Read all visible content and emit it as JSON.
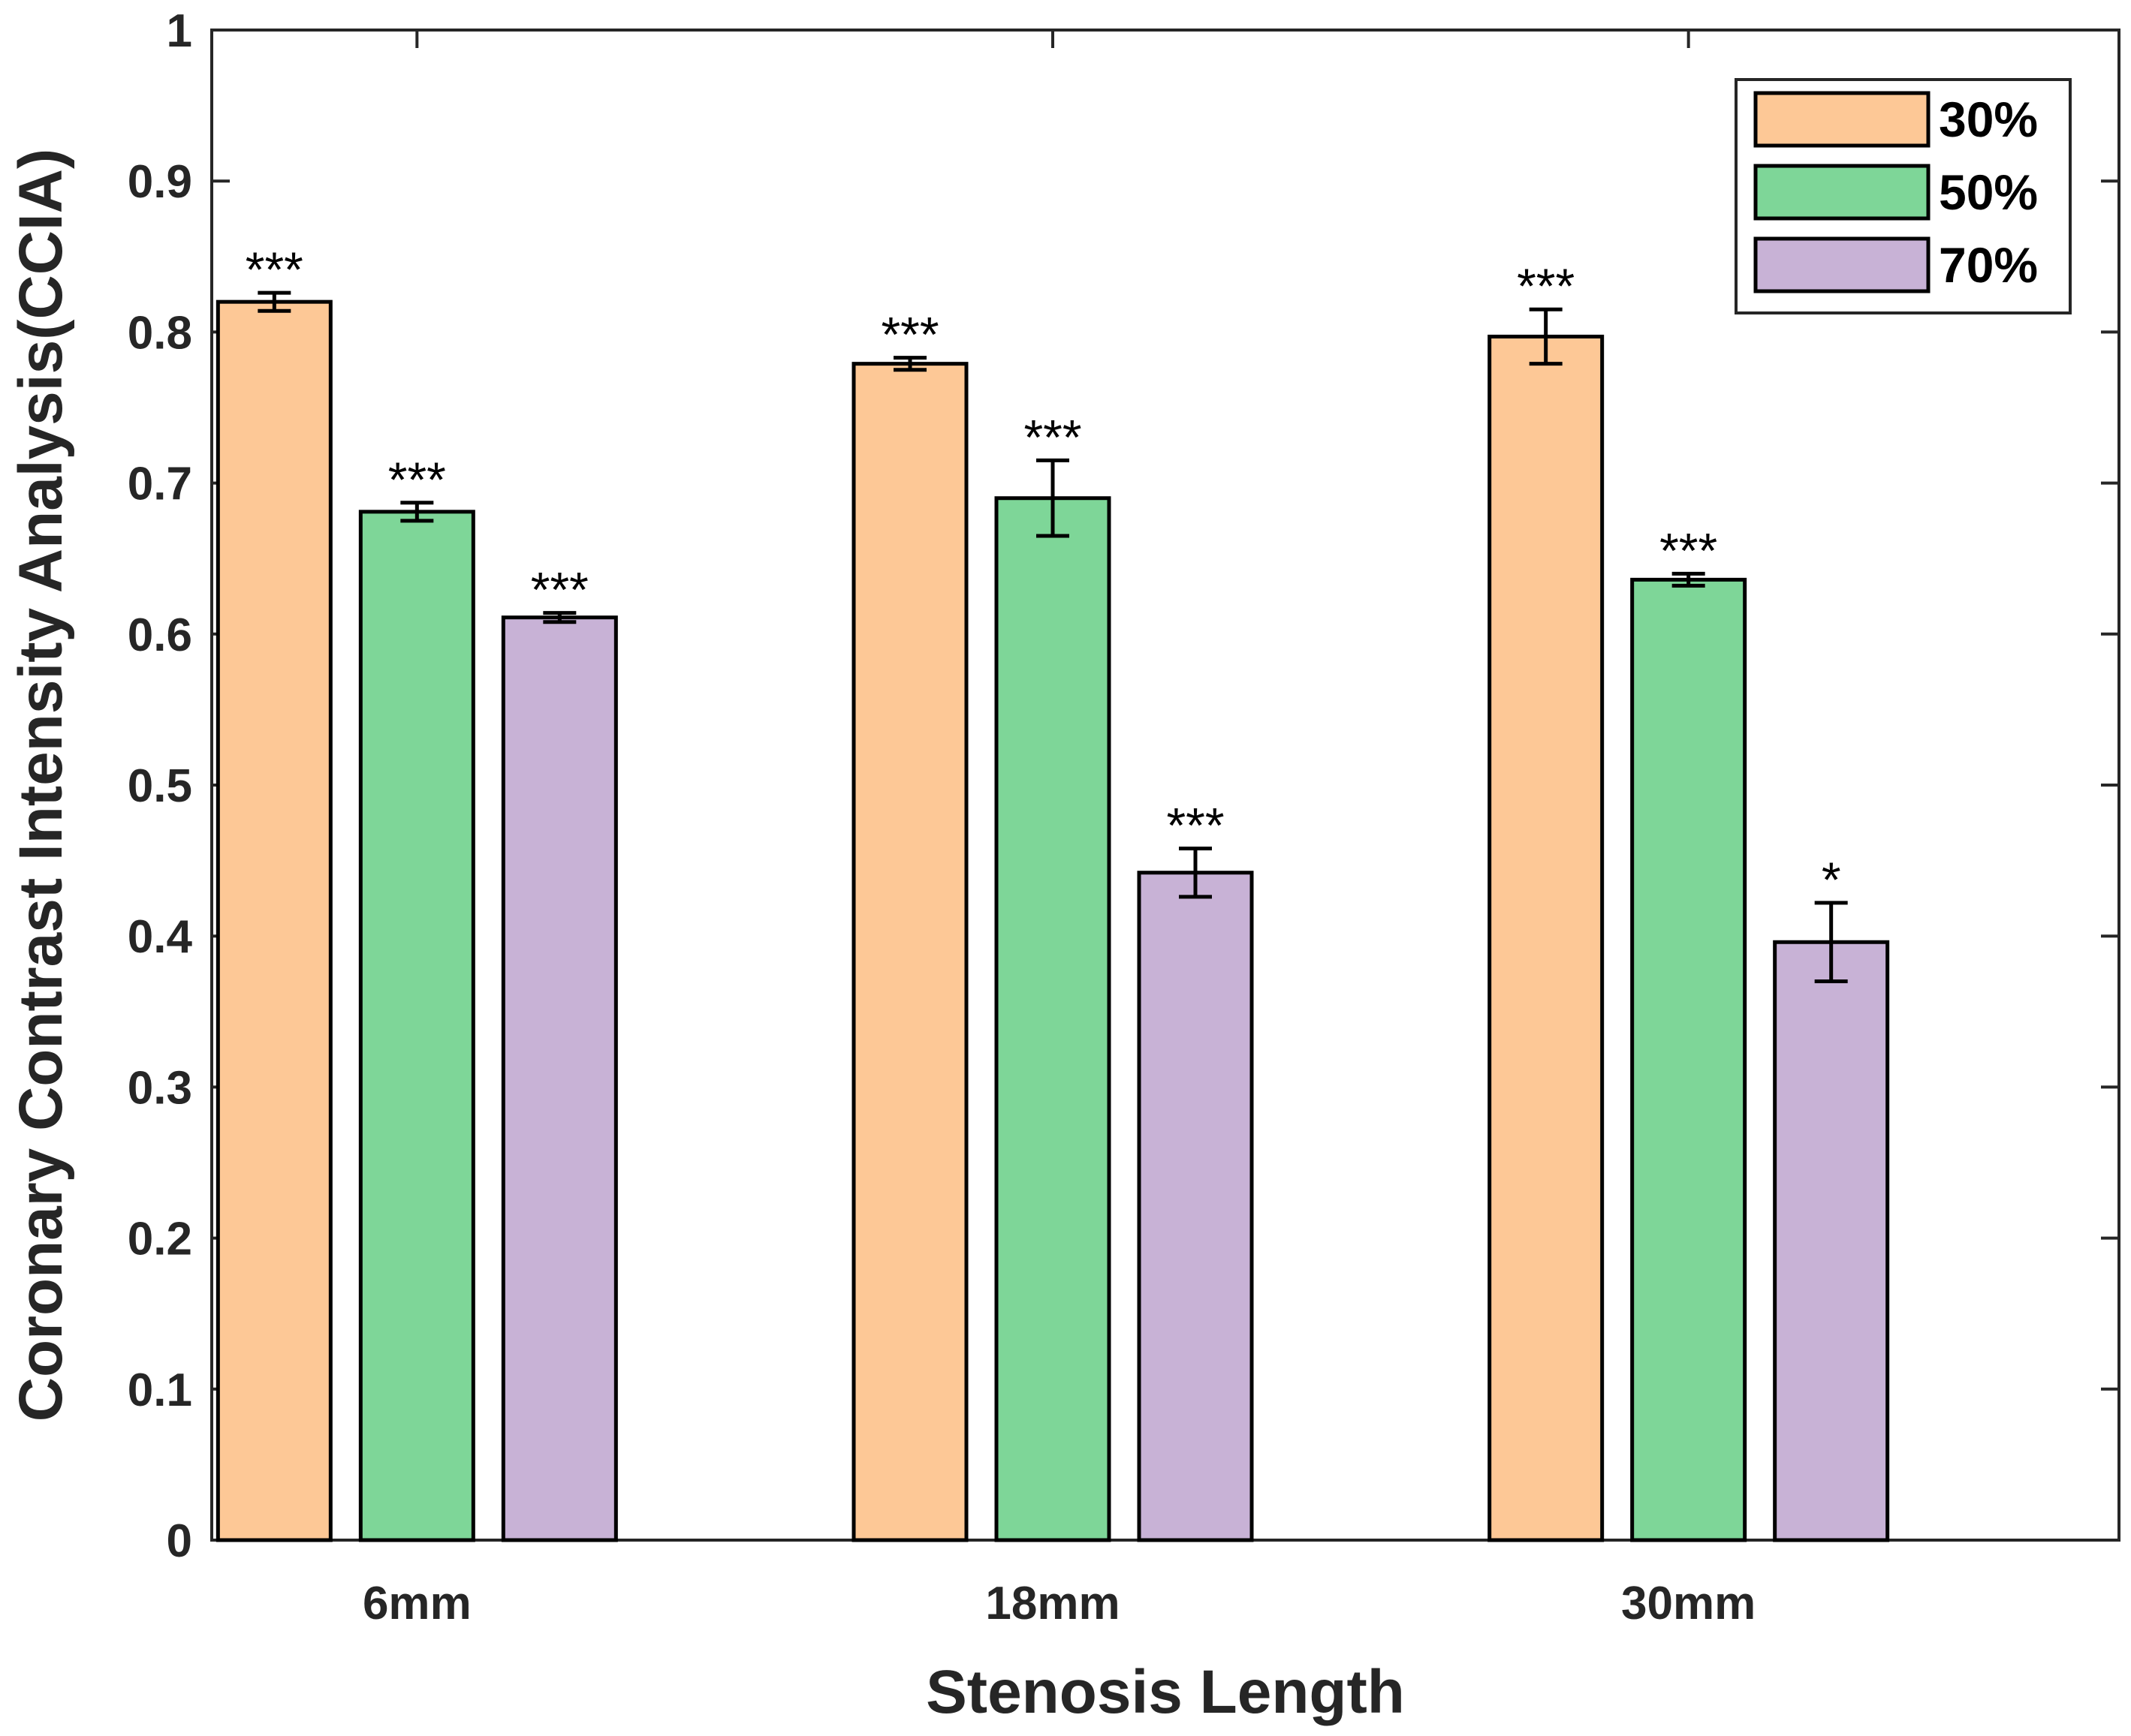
{
  "chart_data": {
    "type": "bar",
    "title": "",
    "xlabel": "Stenosis Length",
    "ylabel": "Coronary Contrast Intensity Analysis(CCIA)",
    "categories": [
      "6mm",
      "18mm",
      "30mm"
    ],
    "ylim": [
      0,
      1
    ],
    "yticks": [
      0,
      0.1,
      0.2,
      0.3,
      0.4,
      0.5,
      0.6,
      0.7,
      0.8,
      0.9,
      1
    ],
    "ytick_labels": [
      "0",
      "0.1",
      "0.2",
      "0.3",
      "0.4",
      "0.5",
      "0.6",
      "0.7",
      "0.8",
      "0.9",
      "1"
    ],
    "grid": false,
    "legend_position": "top-right",
    "series": [
      {
        "name": "30%",
        "color": "#FDC896",
        "values": [
          0.82,
          0.779,
          0.797
        ],
        "errors": [
          0.006,
          0.004,
          0.018
        ],
        "significance": [
          "***",
          "***",
          "***"
        ]
      },
      {
        "name": "50%",
        "color": "#7ED698",
        "values": [
          0.681,
          0.69,
          0.636
        ],
        "errors": [
          0.006,
          0.025,
          0.004
        ],
        "significance": [
          "***",
          "***",
          "***"
        ]
      },
      {
        "name": "70%",
        "color": "#C8B2D6",
        "values": [
          0.611,
          0.442,
          0.396
        ],
        "errors": [
          0.003,
          0.016,
          0.026
        ],
        "significance": [
          "***",
          "***",
          "*"
        ]
      }
    ]
  }
}
